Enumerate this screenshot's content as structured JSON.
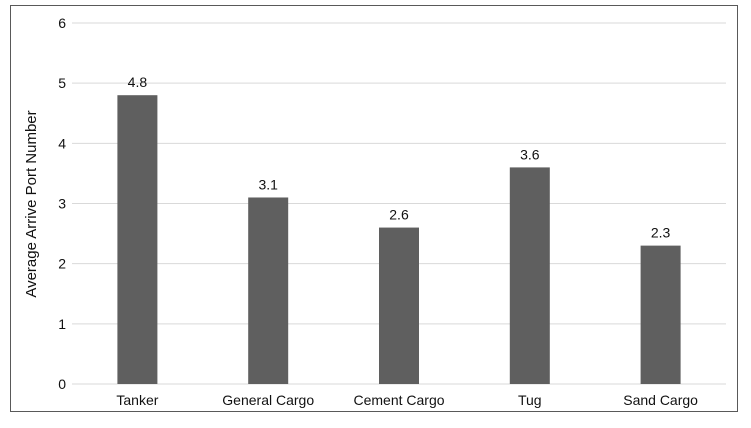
{
  "chart_data": {
    "type": "bar",
    "title": "",
    "xlabel": "",
    "ylabel": "Average Arrive Port Number",
    "categories": [
      "Tanker",
      "General Cargo",
      "Cement Cargo",
      "Tug",
      "Sand Cargo"
    ],
    "values": [
      4.8,
      3.1,
      2.6,
      3.6,
      2.3
    ],
    "value_labels": [
      "4.8",
      "3.1",
      "2.6",
      "3.6",
      "2.3"
    ],
    "ylim": [
      0,
      6
    ],
    "yticks": [
      "0",
      "1",
      "2",
      "3",
      "4",
      "5",
      "6"
    ],
    "grid": true,
    "legend": "none",
    "colors": {
      "bar": "#5f5f5f",
      "grid": "#d9d9d9",
      "frame": "#595959"
    }
  }
}
